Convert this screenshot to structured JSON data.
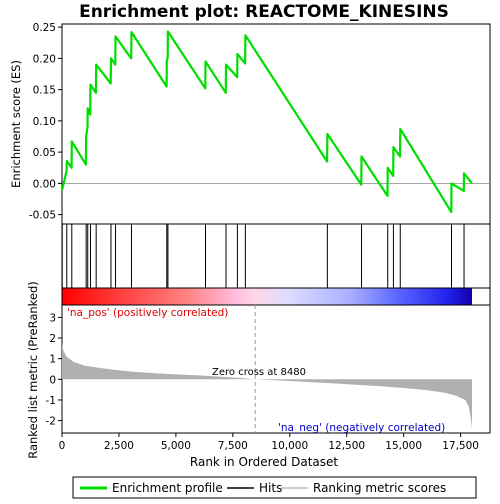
{
  "chart_data": {
    "type": "line",
    "title": "Enrichment plot: REACTOME_KINESINS",
    "xlabel": "Rank in Ordered Dataset",
    "es_panel": {
      "ylabel": "Enrichment score (ES)",
      "ylim": [
        -0.065,
        0.255
      ],
      "yticks": [
        -0.05,
        0.0,
        0.05,
        0.1,
        0.15,
        0.2,
        0.25
      ],
      "ytick_labels": [
        "-0.05",
        "0.00",
        "0.05",
        "0.10",
        "0.15",
        "0.20",
        "0.25"
      ],
      "zero_line": true
    },
    "metric_panel": {
      "ylabel": "Ranked list metric (PreRanked)",
      "ylim": [
        -2.6,
        3.6
      ],
      "yticks": [
        -2,
        -1,
        0,
        1,
        2,
        3
      ],
      "ytick_labels": [
        "-2",
        "-1",
        "0",
        "1",
        "2",
        "3"
      ],
      "zero_cross_label": "Zero cross at 8480",
      "zero_cross": 8480,
      "pos_label": "'na_pos' (positively correlated)",
      "neg_label": "'na_neg' (negatively correlated)",
      "metric_curve": [
        [
          0,
          1.7
        ],
        [
          60,
          1.4
        ],
        [
          200,
          1.1
        ],
        [
          500,
          0.85
        ],
        [
          1000,
          0.66
        ],
        [
          2000,
          0.5
        ],
        [
          3000,
          0.38
        ],
        [
          4000,
          0.3
        ],
        [
          5000,
          0.24
        ],
        [
          6000,
          0.19
        ],
        [
          7000,
          0.12
        ],
        [
          8000,
          0.05
        ],
        [
          8480,
          0.0
        ],
        [
          9000,
          -0.03
        ],
        [
          10000,
          -0.08
        ],
        [
          11000,
          -0.14
        ],
        [
          12000,
          -0.2
        ],
        [
          13000,
          -0.27
        ],
        [
          14000,
          -0.34
        ],
        [
          15000,
          -0.42
        ],
        [
          16000,
          -0.52
        ],
        [
          16800,
          -0.65
        ],
        [
          17300,
          -0.8
        ],
        [
          17700,
          -1.0
        ],
        [
          17850,
          -1.3
        ],
        [
          17950,
          -1.9
        ],
        [
          18000,
          -2.4
        ]
      ]
    },
    "x_range": [
      0,
      18000
    ],
    "xticks": [
      0,
      2500,
      5000,
      7500,
      10000,
      12500,
      15000,
      17500
    ],
    "xtick_labels": [
      "0",
      "2,500",
      "5,000",
      "7,500",
      "10,000",
      "12,500",
      "15,000",
      "17,500"
    ],
    "hits": [
      10,
      210,
      430,
      1060,
      1130,
      1250,
      1500,
      2150,
      2350,
      3050,
      4600,
      4650,
      6300,
      7200,
      7700,
      8050,
      11650,
      13150,
      14300,
      14550,
      14850,
      17100,
      17650
    ],
    "series": [
      {
        "name": "Enrichment profile",
        "x": [
          0,
          10,
          200,
          210,
          420,
          430,
          1050,
          1060,
          1120,
          1130,
          1240,
          1250,
          1490,
          1500,
          2140,
          2150,
          2340,
          2350,
          3040,
          3050,
          4590,
          4600,
          4640,
          4650,
          6290,
          6300,
          7190,
          7200,
          7690,
          7700,
          8040,
          8050,
          11640,
          11650,
          13140,
          13150,
          14290,
          14300,
          14540,
          14550,
          14840,
          14850,
          17090,
          17100,
          17640,
          17650,
          18000
        ],
        "values": [
          -0.005,
          -0.01,
          0.02,
          0.036,
          0.025,
          0.067,
          0.03,
          0.075,
          0.09,
          0.12,
          0.11,
          0.158,
          0.145,
          0.19,
          0.16,
          0.2,
          0.19,
          0.235,
          0.2,
          0.242,
          0.155,
          0.198,
          0.2,
          0.243,
          0.152,
          0.195,
          0.145,
          0.19,
          0.17,
          0.207,
          0.192,
          0.237,
          0.035,
          0.079,
          -0.002,
          0.043,
          -0.02,
          0.025,
          0.012,
          0.058,
          0.043,
          0.087,
          -0.046,
          0.0,
          -0.012,
          0.016,
          0.0
        ]
      }
    ],
    "legend": [
      {
        "label": "Enrichment profile",
        "color": "#00dd00"
      },
      {
        "label": "Hits",
        "color": "#000000"
      },
      {
        "label": "Ranking metric scores",
        "color": "#bbbbbb"
      }
    ],
    "colors": {
      "es_line": "#00dd00",
      "hit": "#000000",
      "metric_fill": "#b0b0b0",
      "pos_text": "#dd0000",
      "neg_text": "#0000cc"
    }
  }
}
